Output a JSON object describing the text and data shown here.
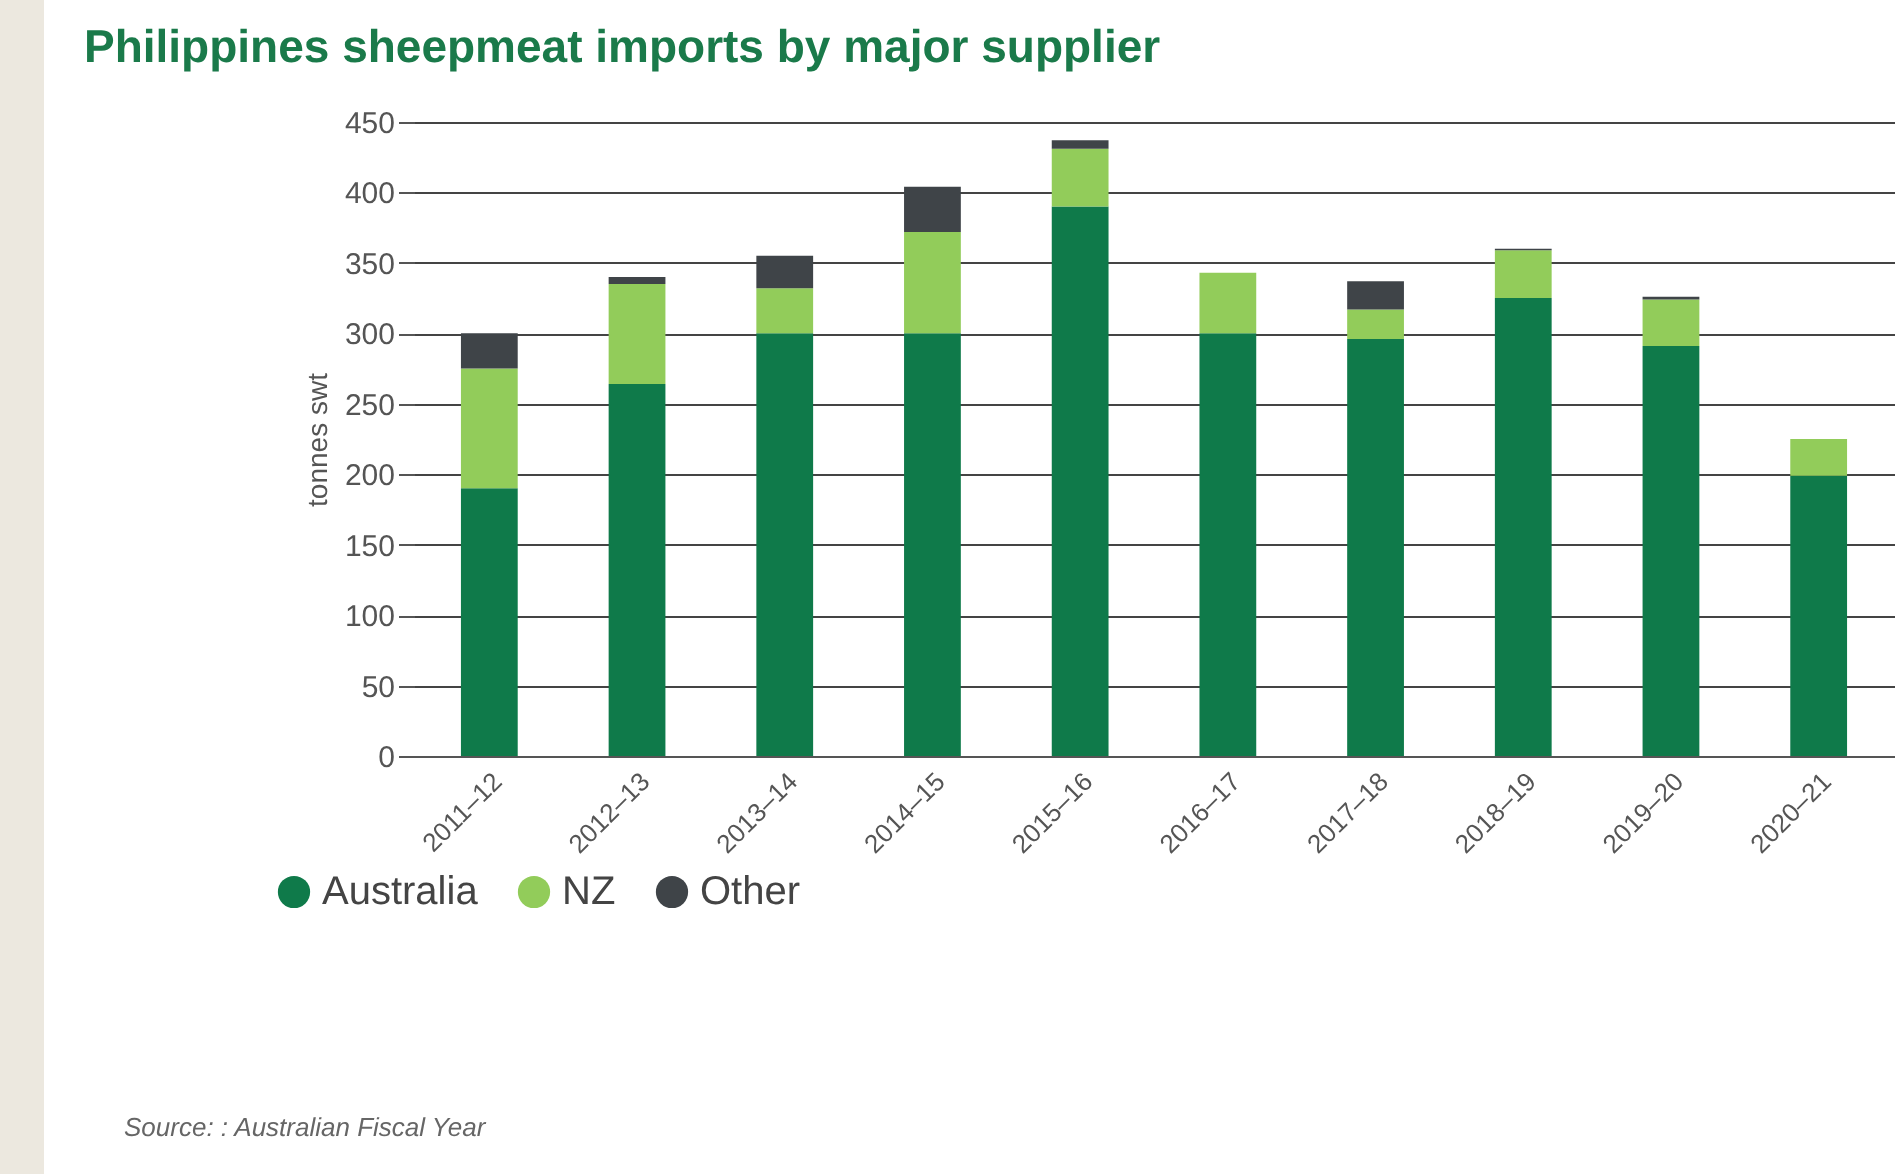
{
  "chart_data": {
    "type": "bar",
    "title": "Philippines sheepmeat imports by major supplier",
    "ylabel": "tonnes swt",
    "categories": [
      "2011–12",
      "2012–13",
      "2013–14",
      "2014–15",
      "2015–16",
      "2016–17",
      "2017–18",
      "2018–19",
      "2019–20",
      "2020–21"
    ],
    "series": [
      {
        "name": "Australia",
        "color": "#0f7a4a",
        "values": [
          190,
          264,
          300,
          300,
          390,
          300,
          296,
          325,
          291,
          199
        ]
      },
      {
        "name": "NZ",
        "color": "#92cc5a",
        "values": [
          85,
          71,
          32,
          72,
          41,
          43,
          21,
          34,
          33,
          26
        ]
      },
      {
        "name": "Other",
        "color": "#3f4448",
        "values": [
          25,
          5,
          23,
          32,
          6,
          0,
          20,
          1,
          2,
          0
        ]
      }
    ],
    "stacked": true,
    "ylim": [
      0,
      450
    ],
    "yticks": [
      0,
      50,
      100,
      150,
      200,
      250,
      300,
      350,
      400,
      450
    ],
    "grid": "y",
    "legend": "bottom left",
    "annotations": [
      "Source: : Australian Fiscal Year"
    ]
  }
}
